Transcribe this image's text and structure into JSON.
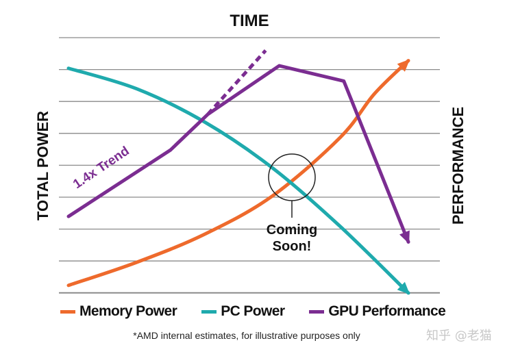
{
  "chart_data": {
    "type": "line",
    "title": "TIME",
    "ylabel_left": "TOTAL POWER",
    "ylabel_right": "PERFORMANCE",
    "grid": true,
    "x": [
      0,
      1,
      2,
      3,
      4,
      5,
      6,
      7,
      8,
      9,
      10
    ],
    "xlim": [
      0,
      10
    ],
    "ylim": [
      0,
      10
    ],
    "series": [
      {
        "name": "Memory Power",
        "color": "#ee6a2c",
        "points": [
          [
            0,
            0.3
          ],
          [
            2,
            1.2
          ],
          [
            4,
            2.3
          ],
          [
            6,
            3.8
          ],
          [
            8,
            6.1
          ],
          [
            9,
            7.8
          ],
          [
            10,
            9.1
          ]
        ],
        "arrow_end": true
      },
      {
        "name": "PC Power",
        "color": "#1faaad",
        "points": [
          [
            0,
            8.8
          ],
          [
            2,
            8.0
          ],
          [
            4,
            6.7
          ],
          [
            6,
            4.9
          ],
          [
            8,
            2.6
          ],
          [
            10,
            0
          ]
        ],
        "arrow_end": true
      },
      {
        "name": "GPU Performance",
        "color": "#7b2d91",
        "points": [
          [
            0,
            3.0
          ],
          [
            3,
            5.6
          ],
          [
            4.1,
            7.0
          ],
          [
            6.2,
            8.9
          ],
          [
            8.1,
            8.3
          ],
          [
            10,
            2.0
          ]
        ],
        "arrow_end": true
      },
      {
        "name": "1.4x Trend",
        "color": "#7b2d91",
        "dashed": true,
        "points": [
          [
            4.1,
            7.0
          ],
          [
            5.8,
            9.5
          ]
        ]
      }
    ],
    "annotations": [
      {
        "text": "1.4x Trend",
        "target": "GPU Performance"
      },
      {
        "text_lines": [
          "Coming",
          "Soon!"
        ],
        "target": "intersection of PC Power and Memory Power",
        "x": 6.7,
        "y": 4.0
      }
    ]
  },
  "legend": {
    "items": [
      {
        "label": "Memory Power",
        "color": "#ee6a2c"
      },
      {
        "label": "PC Power",
        "color": "#1faaad"
      },
      {
        "label": "GPU Performance",
        "color": "#7b2d91"
      }
    ]
  },
  "footnote": "*AMD internal estimates, for illustrative purposes only",
  "watermark": "知乎 @老猫"
}
